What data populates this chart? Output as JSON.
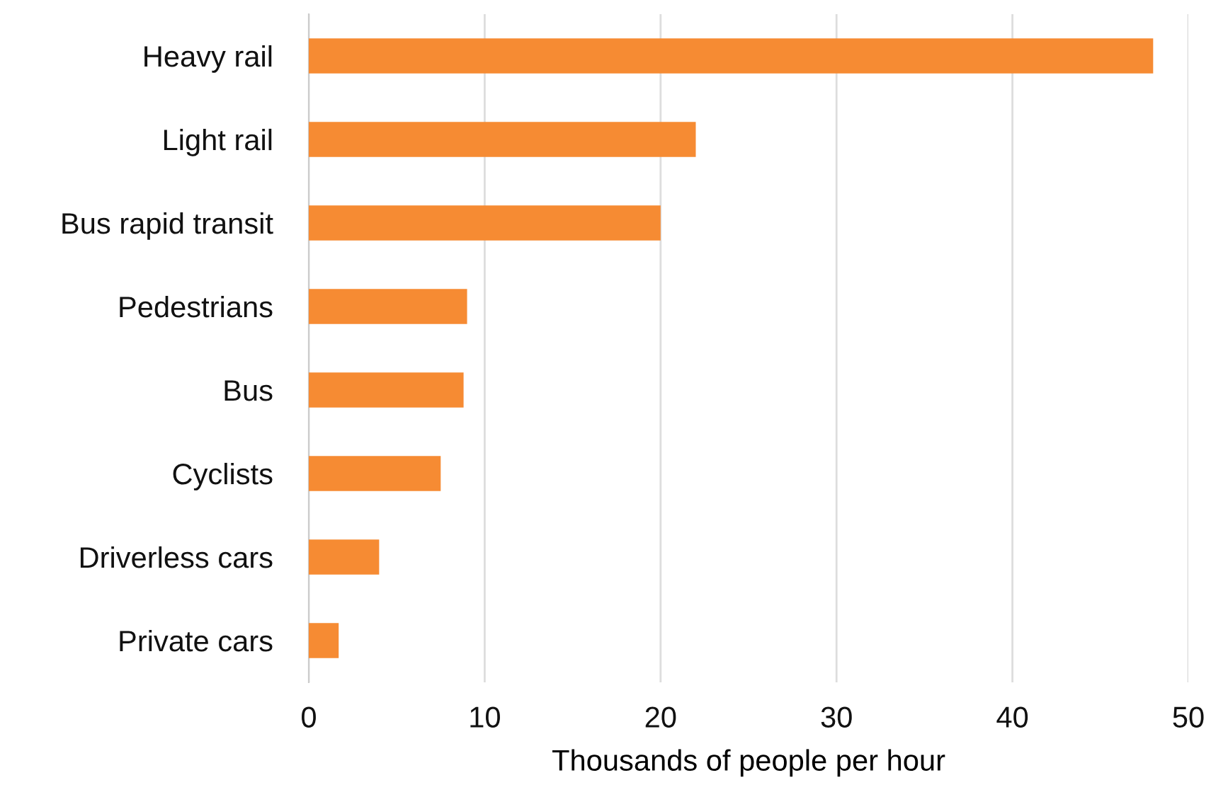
{
  "chart_data": {
    "type": "bar",
    "orientation": "horizontal",
    "xlabel": "Thousands of people per hour",
    "categories": [
      "Heavy rail",
      "Light rail",
      "Bus rapid transit",
      "Pedestrians",
      "Bus",
      "Cyclists",
      "Driverless cars",
      "Private cars"
    ],
    "values": [
      48,
      22,
      20,
      9,
      8.8,
      7.5,
      4,
      1.7
    ],
    "color": "#f68b33",
    "xlim": [
      0,
      50
    ],
    "xticks": [
      0,
      10,
      20,
      30,
      40,
      50
    ],
    "grid": "x"
  }
}
